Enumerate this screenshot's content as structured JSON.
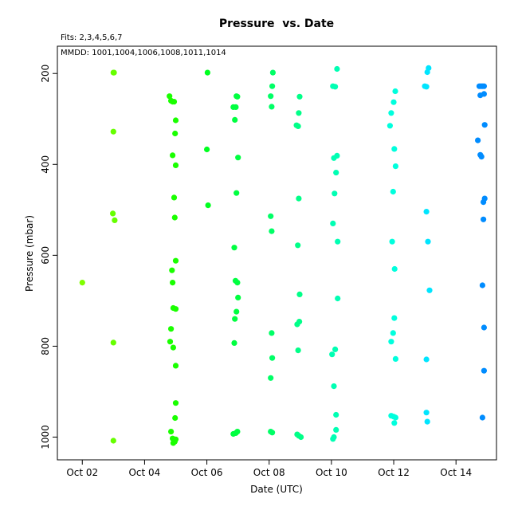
{
  "chart_data": {
    "type": "scatter",
    "title": "Pressure  vs. Date",
    "xlabel": "Date (UTC)",
    "ylabel": "Pressure (mbar)",
    "fits_note": "Fits: 2,3,4,5,6,7",
    "mmdd_note": "MMDD: 1001,1004,1006,1008,1011,1014",
    "x_ticks": [
      "Oct 02",
      "Oct 04",
      "Oct 06",
      "Oct 08",
      "Oct 10",
      "Oct 12",
      "Oct 14"
    ],
    "x_tick_days": [
      2,
      4,
      6,
      8,
      10,
      12,
      14
    ],
    "xlim_days": [
      1.2,
      15.3
    ],
    "y_ticks": [
      200,
      400,
      600,
      800,
      1000
    ],
    "ylim": [
      1050,
      140
    ],
    "y_reversed": true,
    "grid": false,
    "points": [
      {
        "d": 2.0,
        "p": 660,
        "c": "#80ff00"
      },
      {
        "d": 3.0,
        "p": 198,
        "c": "#66ff00"
      },
      {
        "d": 3.02,
        "p": 198,
        "c": "#66ff00"
      },
      {
        "d": 3.0,
        "p": 328,
        "c": "#66ff00"
      },
      {
        "d": 2.98,
        "p": 508,
        "c": "#66ff00"
      },
      {
        "d": 3.04,
        "p": 523,
        "c": "#66ff00"
      },
      {
        "d": 3.0,
        "p": 792,
        "c": "#66ff00"
      },
      {
        "d": 3.0,
        "p": 1008,
        "c": "#66ff00"
      },
      {
        "d": 4.8,
        "p": 250,
        "c": "#1aff00"
      },
      {
        "d": 4.85,
        "p": 260,
        "c": "#1aff00"
      },
      {
        "d": 4.9,
        "p": 262,
        "c": "#1aff00"
      },
      {
        "d": 4.95,
        "p": 262,
        "c": "#1aff00"
      },
      {
        "d": 5.0,
        "p": 303,
        "c": "#1aff00"
      },
      {
        "d": 4.98,
        "p": 332,
        "c": "#1aff00"
      },
      {
        "d": 4.9,
        "p": 380,
        "c": "#1aff00"
      },
      {
        "d": 5.0,
        "p": 402,
        "c": "#1aff00"
      },
      {
        "d": 4.95,
        "p": 473,
        "c": "#1aff00"
      },
      {
        "d": 4.97,
        "p": 517,
        "c": "#1aff00"
      },
      {
        "d": 5.0,
        "p": 612,
        "c": "#1aff00"
      },
      {
        "d": 4.88,
        "p": 633,
        "c": "#1aff00"
      },
      {
        "d": 4.9,
        "p": 660,
        "c": "#1aff00"
      },
      {
        "d": 4.92,
        "p": 716,
        "c": "#1aff00"
      },
      {
        "d": 5.0,
        "p": 718,
        "c": "#1aff00"
      },
      {
        "d": 4.85,
        "p": 762,
        "c": "#1aff00"
      },
      {
        "d": 4.82,
        "p": 790,
        "c": "#1aff00"
      },
      {
        "d": 4.92,
        "p": 803,
        "c": "#1aff00"
      },
      {
        "d": 5.0,
        "p": 843,
        "c": "#1aff00"
      },
      {
        "d": 5.0,
        "p": 925,
        "c": "#1aff00"
      },
      {
        "d": 4.98,
        "p": 958,
        "c": "#1aff00"
      },
      {
        "d": 4.85,
        "p": 988,
        "c": "#1aff00"
      },
      {
        "d": 4.9,
        "p": 1003,
        "c": "#1aff00"
      },
      {
        "d": 4.95,
        "p": 1008,
        "c": "#1aff00"
      },
      {
        "d": 5.0,
        "p": 1005,
        "c": "#1aff00"
      },
      {
        "d": 4.92,
        "p": 1013,
        "c": "#1aff00"
      },
      {
        "d": 4.97,
        "p": 1010,
        "c": "#1aff00"
      },
      {
        "d": 6.02,
        "p": 198,
        "c": "#00ff20"
      },
      {
        "d": 6.0,
        "p": 367,
        "c": "#00ff20"
      },
      {
        "d": 6.04,
        "p": 490,
        "c": "#00ff20"
      },
      {
        "d": 6.95,
        "p": 250,
        "c": "#00ff40"
      },
      {
        "d": 6.98,
        "p": 251,
        "c": "#00ff40"
      },
      {
        "d": 6.85,
        "p": 274,
        "c": "#00ff40"
      },
      {
        "d": 6.93,
        "p": 274,
        "c": "#00ff40"
      },
      {
        "d": 6.9,
        "p": 302,
        "c": "#00ff40"
      },
      {
        "d": 7.0,
        "p": 385,
        "c": "#00ff40"
      },
      {
        "d": 6.95,
        "p": 463,
        "c": "#00ff40"
      },
      {
        "d": 6.88,
        "p": 583,
        "c": "#00ff40"
      },
      {
        "d": 6.92,
        "p": 656,
        "c": "#00ff40"
      },
      {
        "d": 6.98,
        "p": 660,
        "c": "#00ff40"
      },
      {
        "d": 7.0,
        "p": 693,
        "c": "#00ff40"
      },
      {
        "d": 6.95,
        "p": 724,
        "c": "#00ff40"
      },
      {
        "d": 6.9,
        "p": 740,
        "c": "#00ff40"
      },
      {
        "d": 6.88,
        "p": 793,
        "c": "#00ff40"
      },
      {
        "d": 6.85,
        "p": 993,
        "c": "#00ff40"
      },
      {
        "d": 6.93,
        "p": 991,
        "c": "#00ff40"
      },
      {
        "d": 6.98,
        "p": 988,
        "c": "#00ff40"
      },
      {
        "d": 8.12,
        "p": 198,
        "c": "#00ff66"
      },
      {
        "d": 8.1,
        "p": 228,
        "c": "#00ff66"
      },
      {
        "d": 8.05,
        "p": 250,
        "c": "#00ff66"
      },
      {
        "d": 8.08,
        "p": 273,
        "c": "#00ff66"
      },
      {
        "d": 8.05,
        "p": 514,
        "c": "#00ff66"
      },
      {
        "d": 8.08,
        "p": 547,
        "c": "#00ff66"
      },
      {
        "d": 8.08,
        "p": 771,
        "c": "#00ff66"
      },
      {
        "d": 8.1,
        "p": 826,
        "c": "#00ff66"
      },
      {
        "d": 8.05,
        "p": 870,
        "c": "#00ff66"
      },
      {
        "d": 8.05,
        "p": 988,
        "c": "#00ff66"
      },
      {
        "d": 8.1,
        "p": 990,
        "c": "#00ff66"
      },
      {
        "d": 8.98,
        "p": 251,
        "c": "#00ff88"
      },
      {
        "d": 8.95,
        "p": 287,
        "c": "#00ff88"
      },
      {
        "d": 8.88,
        "p": 314,
        "c": "#00ff88"
      },
      {
        "d": 8.93,
        "p": 316,
        "c": "#00ff88"
      },
      {
        "d": 8.95,
        "p": 475,
        "c": "#00ff88"
      },
      {
        "d": 8.92,
        "p": 578,
        "c": "#00ff88"
      },
      {
        "d": 8.98,
        "p": 686,
        "c": "#00ff88"
      },
      {
        "d": 8.97,
        "p": 746,
        "c": "#00ff88"
      },
      {
        "d": 8.9,
        "p": 752,
        "c": "#00ff88"
      },
      {
        "d": 8.93,
        "p": 809,
        "c": "#00ff88"
      },
      {
        "d": 8.9,
        "p": 994,
        "c": "#00ff88"
      },
      {
        "d": 8.95,
        "p": 997,
        "c": "#00ff88"
      },
      {
        "d": 9.02,
        "p": 1000,
        "c": "#00ff88"
      },
      {
        "d": 10.18,
        "p": 190,
        "c": "#00ffb3"
      },
      {
        "d": 10.05,
        "p": 228,
        "c": "#00ffb3"
      },
      {
        "d": 10.12,
        "p": 229,
        "c": "#00ffb3"
      },
      {
        "d": 10.18,
        "p": 381,
        "c": "#00ffb3"
      },
      {
        "d": 10.08,
        "p": 386,
        "c": "#00ffb3"
      },
      {
        "d": 10.15,
        "p": 418,
        "c": "#00ffb3"
      },
      {
        "d": 10.1,
        "p": 464,
        "c": "#00ffb3"
      },
      {
        "d": 10.05,
        "p": 530,
        "c": "#00ffb3"
      },
      {
        "d": 10.2,
        "p": 570,
        "c": "#00ffb3"
      },
      {
        "d": 10.2,
        "p": 695,
        "c": "#00ffb3"
      },
      {
        "d": 10.12,
        "p": 807,
        "c": "#00ffb3"
      },
      {
        "d": 10.02,
        "p": 818,
        "c": "#00ffb3"
      },
      {
        "d": 10.08,
        "p": 888,
        "c": "#00ffb3"
      },
      {
        "d": 10.15,
        "p": 951,
        "c": "#00ffb3"
      },
      {
        "d": 10.15,
        "p": 984,
        "c": "#00ffb3"
      },
      {
        "d": 10.08,
        "p": 1000,
        "c": "#00ffb3"
      },
      {
        "d": 10.05,
        "p": 1004,
        "c": "#00ffb3"
      },
      {
        "d": 12.05,
        "p": 239,
        "c": "#00ffdd"
      },
      {
        "d": 12.0,
        "p": 263,
        "c": "#00ffdd"
      },
      {
        "d": 11.92,
        "p": 287,
        "c": "#00ffdd"
      },
      {
        "d": 11.88,
        "p": 315,
        "c": "#00ffdd"
      },
      {
        "d": 12.02,
        "p": 366,
        "c": "#00ffdd"
      },
      {
        "d": 12.06,
        "p": 404,
        "c": "#00ffdd"
      },
      {
        "d": 11.98,
        "p": 460,
        "c": "#00ffdd"
      },
      {
        "d": 11.95,
        "p": 570,
        "c": "#00ffdd"
      },
      {
        "d": 12.03,
        "p": 630,
        "c": "#00ffdd"
      },
      {
        "d": 12.02,
        "p": 738,
        "c": "#00ffdd"
      },
      {
        "d": 11.98,
        "p": 771,
        "c": "#00ffdd"
      },
      {
        "d": 11.92,
        "p": 790,
        "c": "#00ffdd"
      },
      {
        "d": 12.06,
        "p": 828,
        "c": "#00ffdd"
      },
      {
        "d": 11.92,
        "p": 953,
        "c": "#00ffdd"
      },
      {
        "d": 12.0,
        "p": 955,
        "c": "#00ffdd"
      },
      {
        "d": 12.06,
        "p": 957,
        "c": "#00ffdd"
      },
      {
        "d": 12.02,
        "p": 969,
        "c": "#00ffdd"
      },
      {
        "d": 13.12,
        "p": 188,
        "c": "#00e5ff"
      },
      {
        "d": 13.08,
        "p": 197,
        "c": "#00e5ff"
      },
      {
        "d": 13.0,
        "p": 228,
        "c": "#00e5ff"
      },
      {
        "d": 13.05,
        "p": 229,
        "c": "#00e5ff"
      },
      {
        "d": 13.05,
        "p": 504,
        "c": "#00e5ff"
      },
      {
        "d": 13.1,
        "p": 570,
        "c": "#00e5ff"
      },
      {
        "d": 13.15,
        "p": 677,
        "c": "#00e5ff"
      },
      {
        "d": 13.05,
        "p": 829,
        "c": "#00e5ff"
      },
      {
        "d": 13.05,
        "p": 946,
        "c": "#00e5ff"
      },
      {
        "d": 13.08,
        "p": 966,
        "c": "#00e5ff"
      },
      {
        "d": 14.75,
        "p": 228,
        "c": "#008cff"
      },
      {
        "d": 14.8,
        "p": 228,
        "c": "#008cff"
      },
      {
        "d": 14.85,
        "p": 228,
        "c": "#008cff"
      },
      {
        "d": 14.9,
        "p": 228,
        "c": "#008cff"
      },
      {
        "d": 14.78,
        "p": 248,
        "c": "#008cff"
      },
      {
        "d": 14.9,
        "p": 245,
        "c": "#008cff"
      },
      {
        "d": 14.92,
        "p": 313,
        "c": "#008cff"
      },
      {
        "d": 14.7,
        "p": 347,
        "c": "#008cff"
      },
      {
        "d": 14.78,
        "p": 379,
        "c": "#008cff"
      },
      {
        "d": 14.82,
        "p": 383,
        "c": "#008cff"
      },
      {
        "d": 14.92,
        "p": 475,
        "c": "#008cff"
      },
      {
        "d": 14.88,
        "p": 483,
        "c": "#008cff"
      },
      {
        "d": 14.88,
        "p": 521,
        "c": "#008cff"
      },
      {
        "d": 14.85,
        "p": 666,
        "c": "#008cff"
      },
      {
        "d": 14.9,
        "p": 759,
        "c": "#008cff"
      },
      {
        "d": 14.9,
        "p": 854,
        "c": "#008cff"
      },
      {
        "d": 14.85,
        "p": 957,
        "c": "#008cff"
      }
    ]
  }
}
